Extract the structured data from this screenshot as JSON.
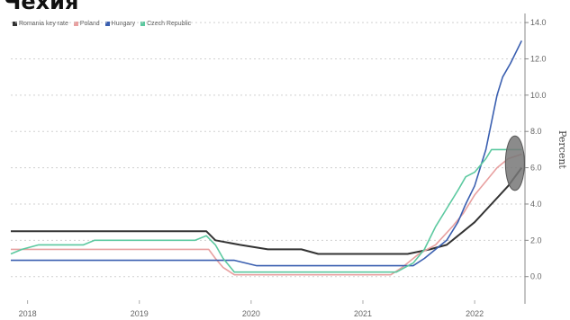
{
  "title": "Чехия",
  "chart_data": {
    "type": "line",
    "title": "Чехия",
    "ylabel": "Percent",
    "ylim": [
      -1.5,
      14.5
    ],
    "yticks": [
      "14.0",
      "12.0",
      "10.0",
      "8.0",
      "6.0",
      "4.0",
      "2.0",
      "0.0"
    ],
    "yticks_values": [
      14,
      12,
      10,
      8,
      6,
      4,
      2,
      0
    ],
    "xlim": [
      2017.85,
      2022.45
    ],
    "xticks": [
      "2018",
      "2019",
      "2020",
      "2021",
      "2022"
    ],
    "xticks_values": [
      2018.0,
      2019.0,
      2020.0,
      2021.0,
      2022.0
    ],
    "grid": true,
    "legend_position": "top-left",
    "series": [
      {
        "name": "Romania key rate",
        "color": "#333333",
        "points": [
          [
            2017.85,
            2.5
          ],
          [
            2019.6,
            2.5
          ],
          [
            2019.68,
            2.0
          ],
          [
            2019.9,
            1.75
          ],
          [
            2020.15,
            1.5
          ],
          [
            2020.45,
            1.5
          ],
          [
            2020.6,
            1.25
          ],
          [
            2021.4,
            1.25
          ],
          [
            2021.6,
            1.5
          ],
          [
            2021.75,
            1.75
          ],
          [
            2021.9,
            2.5
          ],
          [
            2022.0,
            3.0
          ],
          [
            2022.15,
            4.0
          ],
          [
            2022.3,
            5.0
          ],
          [
            2022.42,
            6.0
          ]
        ]
      },
      {
        "name": "Poland",
        "color": "#e8a0a0",
        "points": [
          [
            2017.85,
            1.5
          ],
          [
            2019.62,
            1.5
          ],
          [
            2019.68,
            1.0
          ],
          [
            2019.75,
            0.5
          ],
          [
            2019.85,
            0.1
          ],
          [
            2021.25,
            0.1
          ],
          [
            2021.35,
            0.5
          ],
          [
            2021.5,
            1.25
          ],
          [
            2021.65,
            1.75
          ],
          [
            2021.8,
            2.75
          ],
          [
            2021.9,
            3.5
          ],
          [
            2022.0,
            4.5
          ],
          [
            2022.1,
            5.25
          ],
          [
            2022.2,
            6.0
          ],
          [
            2022.3,
            6.5
          ],
          [
            2022.42,
            6.75
          ]
        ]
      },
      {
        "name": "Hungary",
        "color": "#3a5fb0",
        "points": [
          [
            2017.85,
            0.9
          ],
          [
            2019.85,
            0.9
          ],
          [
            2019.95,
            0.75
          ],
          [
            2020.05,
            0.6
          ],
          [
            2021.45,
            0.6
          ],
          [
            2021.55,
            1.0
          ],
          [
            2021.65,
            1.5
          ],
          [
            2021.75,
            2.0
          ],
          [
            2021.85,
            3.0
          ],
          [
            2021.92,
            4.0
          ],
          [
            2022.0,
            5.0
          ],
          [
            2022.05,
            6.0
          ],
          [
            2022.1,
            7.0
          ],
          [
            2022.15,
            8.5
          ],
          [
            2022.2,
            10.0
          ],
          [
            2022.25,
            11.0
          ],
          [
            2022.32,
            11.75
          ],
          [
            2022.42,
            13.0
          ]
        ]
      },
      {
        "name": "Czech Republic",
        "color": "#5cc9a0",
        "points": [
          [
            2017.85,
            1.25
          ],
          [
            2017.95,
            1.5
          ],
          [
            2018.1,
            1.75
          ],
          [
            2018.5,
            1.75
          ],
          [
            2018.6,
            2.0
          ],
          [
            2019.5,
            2.0
          ],
          [
            2019.6,
            2.25
          ],
          [
            2019.68,
            1.75
          ],
          [
            2019.75,
            1.0
          ],
          [
            2019.85,
            0.25
          ],
          [
            2021.3,
            0.25
          ],
          [
            2021.45,
            0.75
          ],
          [
            2021.55,
            1.5
          ],
          [
            2021.65,
            2.75
          ],
          [
            2021.75,
            3.75
          ],
          [
            2021.85,
            4.75
          ],
          [
            2021.92,
            5.5
          ],
          [
            2022.0,
            5.75
          ],
          [
            2022.1,
            6.5
          ],
          [
            2022.15,
            7.0
          ],
          [
            2022.42,
            7.0
          ]
        ]
      }
    ],
    "annotations": [
      {
        "shape": "ellipse",
        "center": [
          2022.36,
          6.25
        ],
        "rx_data": 0.085,
        "ry_data": 1.5,
        "color": "#777777"
      }
    ]
  }
}
